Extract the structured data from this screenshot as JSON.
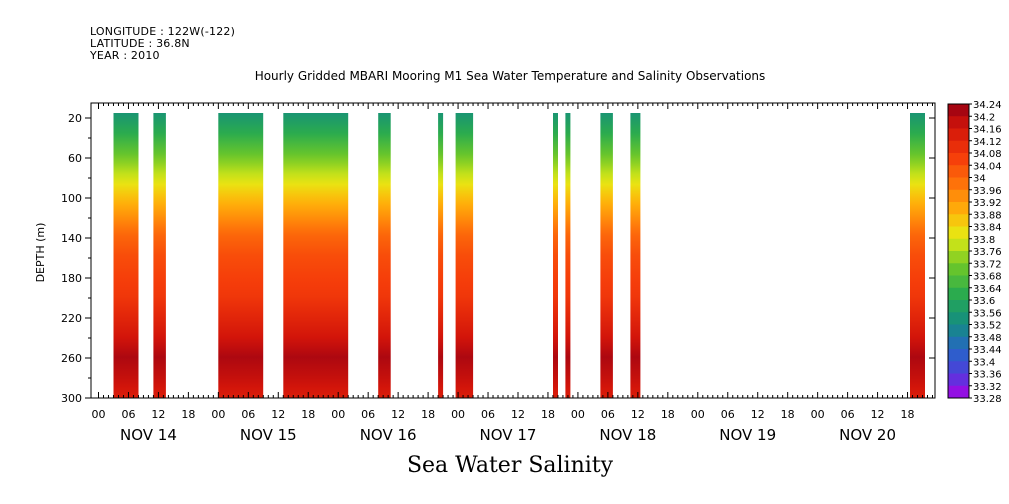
{
  "header": {
    "longitude": "LONGITUDE : 122W(-122)",
    "latitude": "LATITUDE : 36.8N",
    "year": "YEAR : 2010"
  },
  "title": "Hourly Gridded MBARI Mooring M1 Sea Water Temperature and Salinity Observations",
  "footer": "Sea Water Salinity",
  "chart_data": {
    "type": "heatmap",
    "title": "Hourly Gridded MBARI Mooring M1 Sea Water Temperature and Salinity Observations",
    "xlabel": "",
    "ylabel": "DEPTH (m)",
    "x_day_labels": [
      "NOV 14",
      "NOV 15",
      "NOV 16",
      "NOV 17",
      "NOV 18",
      "NOV 19",
      "NOV 20"
    ],
    "x_hour_labels": [
      "00",
      "06",
      "12",
      "18"
    ],
    "y_ticks": [
      20,
      60,
      100,
      140,
      180,
      220,
      260,
      300
    ],
    "ylim": [
      300,
      5
    ],
    "colorbar_label": "Sea Water Salinity",
    "colorbar_levels": [
      "34.24",
      "34.2",
      "34.16",
      "34.12",
      "34.08",
      "34.04",
      "34",
      "33.96",
      "33.92",
      "33.88",
      "33.84",
      "33.8",
      "33.76",
      "33.72",
      "33.68",
      "33.64",
      "33.6",
      "33.56",
      "33.52",
      "33.48",
      "33.44",
      "33.4",
      "33.36",
      "33.32",
      "33.28"
    ],
    "data_segments_hours": [
      {
        "start": 3,
        "end": 8
      },
      {
        "start": 11,
        "end": 13.5
      },
      {
        "start": 24,
        "end": 33
      },
      {
        "start": 37,
        "end": 50
      },
      {
        "start": 56,
        "end": 58.5
      },
      {
        "start": 68,
        "end": 69
      },
      {
        "start": 71.5,
        "end": 75
      },
      {
        "start": 91,
        "end": 92
      },
      {
        "start": 93.5,
        "end": 94.5
      },
      {
        "start": 100.5,
        "end": 103
      },
      {
        "start": 106.5,
        "end": 108.5
      },
      {
        "start": 162.5,
        "end": 165.5
      }
    ],
    "profile_depths": [
      20,
      40,
      60,
      80,
      100,
      120,
      140,
      160,
      180,
      200,
      220,
      240,
      260,
      280,
      300
    ],
    "profile_salinity": [
      33.55,
      33.62,
      33.7,
      33.78,
      33.86,
      33.93,
      34.0,
      34.04,
      34.06,
      34.08,
      34.12,
      34.16,
      34.21,
      34.18,
      34.14
    ]
  }
}
